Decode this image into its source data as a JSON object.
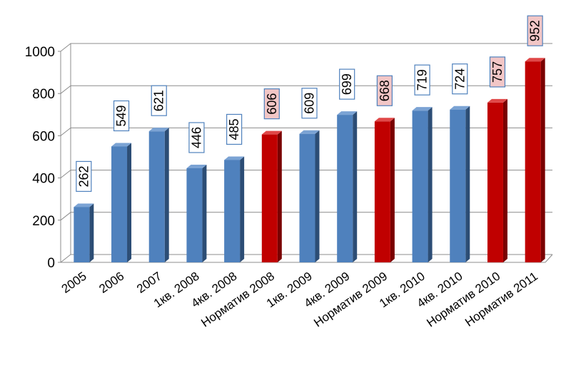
{
  "chart_data": {
    "type": "bar",
    "categories": [
      "2005",
      "2006",
      "2007",
      "1кв. 2008",
      "4кв. 2008",
      "Норматив 2008",
      "1кв. 2009",
      "4кв. 2009",
      "Норматив 2009",
      "1кв. 2010",
      "4кв. 2010",
      "Норматив 2010",
      "Норматив 2011"
    ],
    "values": [
      262,
      549,
      621,
      446,
      485,
      606,
      609,
      699,
      668,
      719,
      724,
      757,
      952
    ],
    "highlight": [
      false,
      false,
      false,
      false,
      false,
      true,
      false,
      false,
      true,
      false,
      false,
      true,
      true
    ],
    "ylim": [
      0,
      1000
    ],
    "yticks": [
      0,
      200,
      400,
      600,
      800,
      1000
    ],
    "title": "",
    "xlabel": "",
    "ylabel": "",
    "grid": true,
    "legend": "none",
    "colors": {
      "bar_front": "#4f81bd",
      "bar_side": "#2c4d75",
      "bar_top": "#7ba3d4",
      "highlight_front": "#c00000",
      "highlight_side": "#7a0000",
      "highlight_top": "#e04848",
      "label_border": "#4f81bd",
      "highlight_label_fill": "#f2c6c6",
      "grid": "#8c8c8c"
    }
  }
}
